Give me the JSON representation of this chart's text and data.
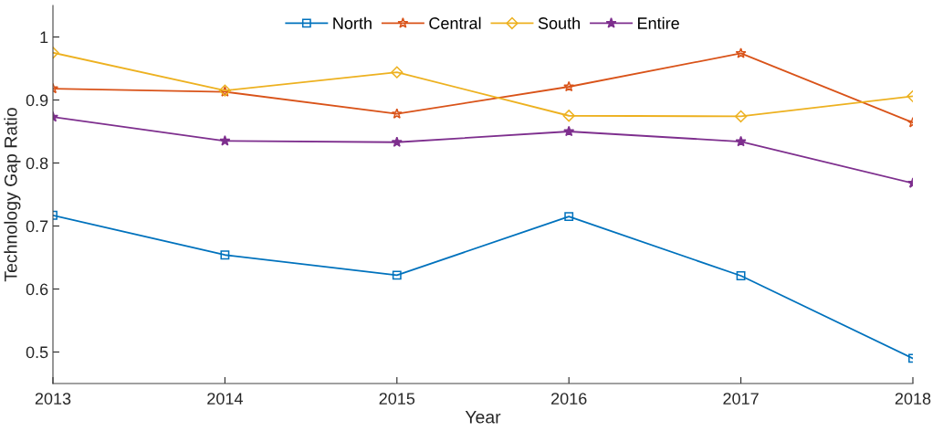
{
  "chart_data": {
    "type": "line",
    "xlabel": "Year",
    "ylabel": "Technology Gap Ratio",
    "x": [
      2013,
      2014,
      2015,
      2016,
      2017,
      2018
    ],
    "xlim": [
      2013,
      2018
    ],
    "xticks": [
      2013,
      2014,
      2015,
      2016,
      2017,
      2018
    ],
    "ylim": [
      0.45,
      1.05
    ],
    "yticks": [
      0.5,
      0.6,
      0.7,
      0.8,
      0.9,
      1
    ],
    "grid": false,
    "legend": "top",
    "line_style": "solid",
    "series": [
      {
        "name": "North",
        "color": "#0072bd",
        "marker": "square",
        "values": [
          0.717,
          0.654,
          0.622,
          0.715,
          0.621,
          0.49
        ]
      },
      {
        "name": "Central",
        "color": "#d95319",
        "marker": "star",
        "values": [
          0.918,
          0.913,
          0.878,
          0.921,
          0.974,
          0.864
        ]
      },
      {
        "name": "South",
        "color": "#edb120",
        "marker": "diamond",
        "values": [
          0.975,
          0.915,
          0.944,
          0.875,
          0.874,
          0.906
        ]
      },
      {
        "name": "Entire",
        "color": "#7e2f8e",
        "marker": "star",
        "values": [
          0.873,
          0.835,
          0.833,
          0.85,
          0.834,
          0.768
        ]
      }
    ]
  }
}
